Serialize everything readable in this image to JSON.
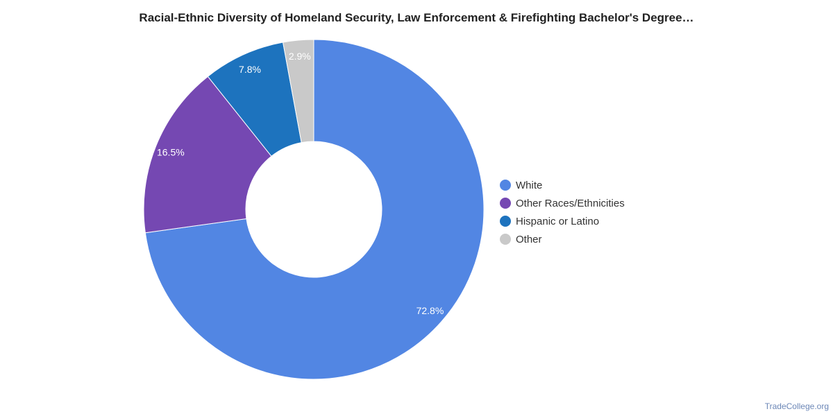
{
  "chart_data": {
    "type": "pie",
    "title": "Racial-Ethnic Diversity of Homeland Security, Law Enforcement & Firefighting Bachelor's Degree…",
    "categories": [
      "White",
      "Other Races/Ethnicities",
      "Hispanic or Latino",
      "Other"
    ],
    "values": [
      72.8,
      16.5,
      7.8,
      2.9
    ],
    "value_labels": [
      "72.8%",
      "16.5%",
      "7.8%",
      "2.9%"
    ],
    "colors": [
      "#5286e3",
      "#7548b2",
      "#1d73be",
      "#c9c9c9"
    ],
    "donut": true,
    "legend_position": "right"
  },
  "footer": {
    "source": "TradeCollege.org"
  }
}
